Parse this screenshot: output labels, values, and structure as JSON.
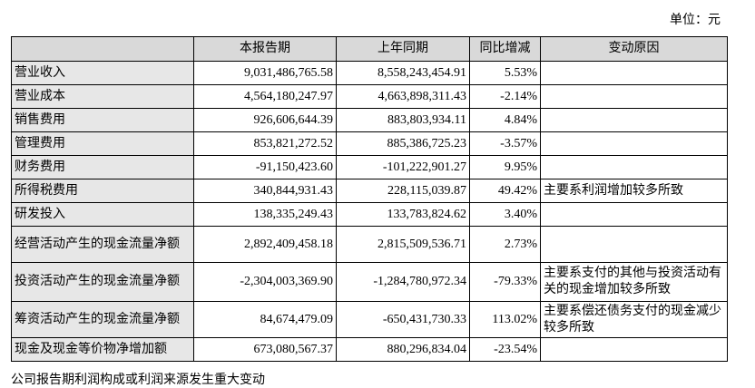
{
  "unit": "单位：元",
  "table": {
    "header": [
      "本报告期",
      "上年同期",
      "同比增减",
      "变动原因"
    ],
    "rows": [
      {
        "item": "营业收入",
        "current": "9,031,486,765.58",
        "previous": "8,558,243,454.91",
        "change": "5.53%"
      },
      {
        "item": "营业成本",
        "current": "4,564,180,247.97",
        "previous": "4,663,898,311.43",
        "change": "-2.14%"
      },
      {
        "item": "销售费用",
        "current": "926,606,644.39",
        "previous": "883,803,934.11",
        "change": "4.84%"
      },
      {
        "item": "管理费用",
        "current": "853,821,272.52",
        "previous": "885,386,725.23",
        "change": "-3.57%"
      },
      {
        "item": "财务费用",
        "current": "-91,150,423.60",
        "previous": "-101,222,901.27",
        "change": "9.95%"
      },
      {
        "item": "所得税费用",
        "current": "340,844,931.43",
        "previous": "228,115,039.87",
        "change": "49.42%",
        "reason": "主要系利润增加较多所致"
      },
      {
        "item": "研发投入",
        "current": "138,335,249.43",
        "previous": "133,783,824.62",
        "change": "3.40%"
      },
      {
        "item": "经营活动产生的现金流量净额",
        "current": "2,892,409,458.18",
        "previous": "2,815,509,536.71",
        "change": "2.73%"
      },
      {
        "item": "投资活动产生的现金流量净额",
        "current": "-2,304,003,369.90",
        "previous": "-1,284,780,972.34",
        "change": "-79.33%",
        "reason": "主要系支付的其他与投资活动有关的现金增加较多所致"
      },
      {
        "item": "筹资活动产生的现金流量净额",
        "current": "84,674,479.09",
        "previous": "-650,431,730.33",
        "change": "113.02%",
        "reason": "主要系偿还债务支付的现金减少较多所致"
      },
      {
        "item": "现金及现金等价物净增加额",
        "current": "673,080,567.37",
        "previous": "880,296,834.04",
        "change": "-23.54%"
      }
    ]
  },
  "footer": "公司报告期利润构成或利润来源发生重大变动"
}
